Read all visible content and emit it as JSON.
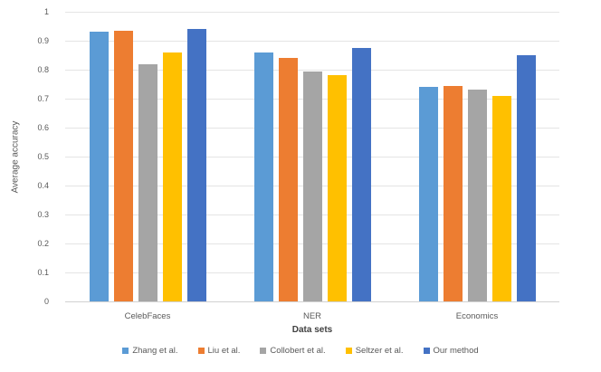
{
  "chart_data": {
    "type": "bar",
    "title": "",
    "xlabel": "Data sets",
    "ylabel": "Average accuracy",
    "ylim": [
      0,
      1
    ],
    "ytick_labels": [
      "0",
      "0.1",
      "0.2",
      "0.3",
      "0.4",
      "0.5",
      "0.6",
      "0.7",
      "0.8",
      "0.9",
      "1"
    ],
    "grid": true,
    "legend_position": "bottom",
    "categories": [
      "CelebFaces",
      "NER",
      "Economics"
    ],
    "series": [
      {
        "name": "Zhang et al.",
        "color": "#5B9BD5",
        "values": [
          0.93,
          0.86,
          0.74
        ]
      },
      {
        "name": "Liu et al.",
        "color": "#ED7D31",
        "values": [
          0.935,
          0.84,
          0.745
        ]
      },
      {
        "name": "Collobert et al.",
        "color": "#A5A5A5",
        "values": [
          0.82,
          0.795,
          0.73
        ]
      },
      {
        "name": "Seltzer et al.",
        "color": "#FFC000",
        "values": [
          0.86,
          0.78,
          0.71
        ]
      },
      {
        "name": "Our method",
        "color": "#4472C4",
        "values": [
          0.94,
          0.875,
          0.85
        ]
      }
    ]
  }
}
